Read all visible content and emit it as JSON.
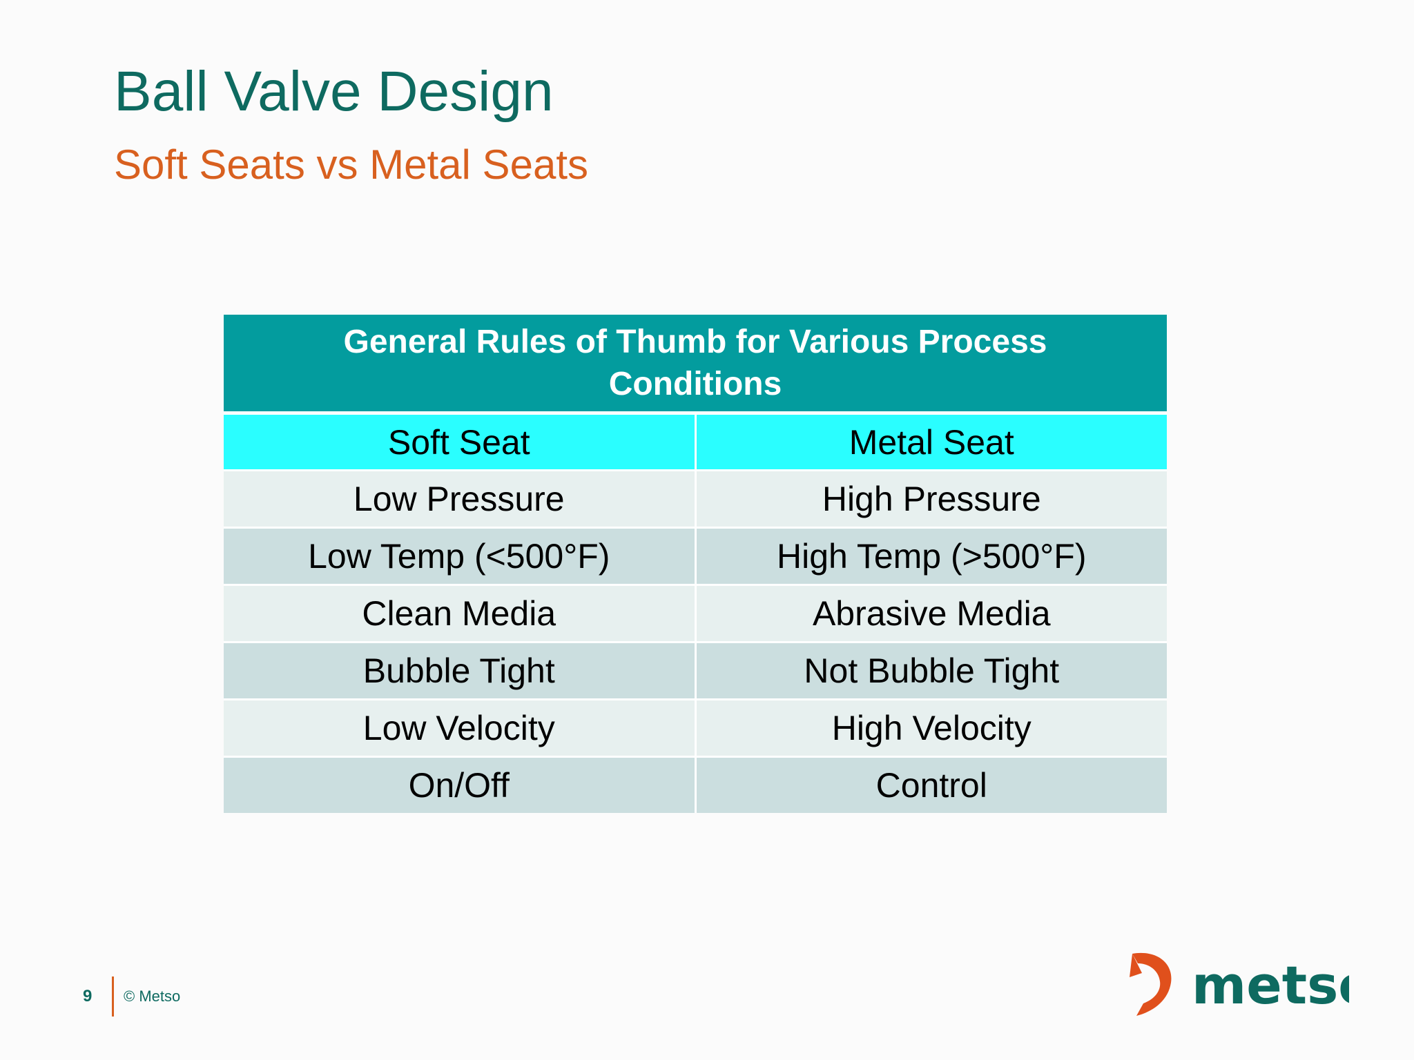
{
  "slide": {
    "title": "Ball Valve Design",
    "subtitle": "Soft Seats vs Metal Seats"
  },
  "table": {
    "heading": "General Rules of Thumb for Various Process Conditions",
    "columns": [
      "Soft Seat",
      "Metal Seat"
    ],
    "rows": [
      [
        "Low Pressure",
        "High Pressure"
      ],
      [
        "Low Temp (<500°F)",
        "High Temp (>500°F)"
      ],
      [
        "Clean Media",
        "Abrasive Media"
      ],
      [
        "Bubble Tight",
        "Not Bubble Tight"
      ],
      [
        "Low Velocity",
        "High Velocity"
      ],
      [
        "On/Off",
        "Control"
      ]
    ]
  },
  "footer": {
    "page_number": "9",
    "copyright": "© Metso"
  },
  "logo": {
    "wordmark": "metso"
  },
  "colors": {
    "title": "#0e6a60",
    "subtitle": "#d8601f",
    "table_banner": "#039c9e",
    "table_column_header": "#2afeff",
    "row_light": "#e7f0ef",
    "row_dark": "#cbdedf",
    "logo_mark": "#e0501c",
    "logo_text": "#0e6a60"
  }
}
